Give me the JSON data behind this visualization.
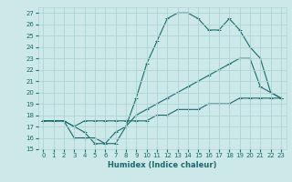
{
  "title": "",
  "xlabel": "Humidex (Indice chaleur)",
  "ylabel": "",
  "bg_color": "#cce8e8",
  "grid_color": "#aed4d4",
  "line_color": "#1a6b6b",
  "xlim": [
    -0.5,
    23.5
  ],
  "ylim": [
    15,
    27.5
  ],
  "xticks": [
    0,
    1,
    2,
    3,
    4,
    5,
    6,
    7,
    8,
    9,
    10,
    11,
    12,
    13,
    14,
    15,
    16,
    17,
    18,
    19,
    20,
    21,
    22,
    23
  ],
  "yticks": [
    15,
    16,
    17,
    18,
    19,
    20,
    21,
    22,
    23,
    24,
    25,
    26,
    27
  ],
  "line1_x": [
    0,
    1,
    2,
    3,
    4,
    5,
    6,
    7,
    8,
    9,
    10,
    11,
    12,
    13,
    14,
    15,
    16,
    17,
    18,
    19,
    20,
    21,
    22,
    23
  ],
  "line1_y": [
    17.5,
    17.5,
    17.5,
    17.0,
    16.5,
    15.5,
    15.5,
    15.5,
    17.0,
    19.5,
    22.5,
    24.5,
    26.5,
    27.0,
    27.0,
    26.5,
    25.5,
    25.5,
    26.5,
    25.5,
    24.0,
    23.0,
    20.0,
    19.5
  ],
  "line2_x": [
    0,
    1,
    2,
    3,
    4,
    5,
    6,
    7,
    8,
    9,
    10,
    11,
    12,
    13,
    14,
    15,
    16,
    17,
    18,
    19,
    20,
    21,
    22,
    23
  ],
  "line2_y": [
    17.5,
    17.5,
    17.5,
    16.0,
    16.0,
    16.0,
    15.5,
    16.5,
    17.0,
    18.0,
    18.5,
    19.0,
    19.5,
    20.0,
    20.5,
    21.0,
    21.5,
    22.0,
    22.5,
    23.0,
    23.0,
    20.5,
    20.0,
    19.5
  ],
  "line3_x": [
    0,
    1,
    2,
    3,
    4,
    5,
    6,
    7,
    8,
    9,
    10,
    11,
    12,
    13,
    14,
    15,
    16,
    17,
    18,
    19,
    20,
    21,
    22,
    23
  ],
  "line3_y": [
    17.5,
    17.5,
    17.5,
    17.0,
    17.5,
    17.5,
    17.5,
    17.5,
    17.5,
    17.5,
    17.5,
    18.0,
    18.0,
    18.5,
    18.5,
    18.5,
    19.0,
    19.0,
    19.0,
    19.5,
    19.5,
    19.5,
    19.5,
    19.5
  ],
  "xlabel_fontsize": 6.0,
  "tick_fontsize": 5.0,
  "marker_size": 2.5,
  "linewidth": 0.8
}
